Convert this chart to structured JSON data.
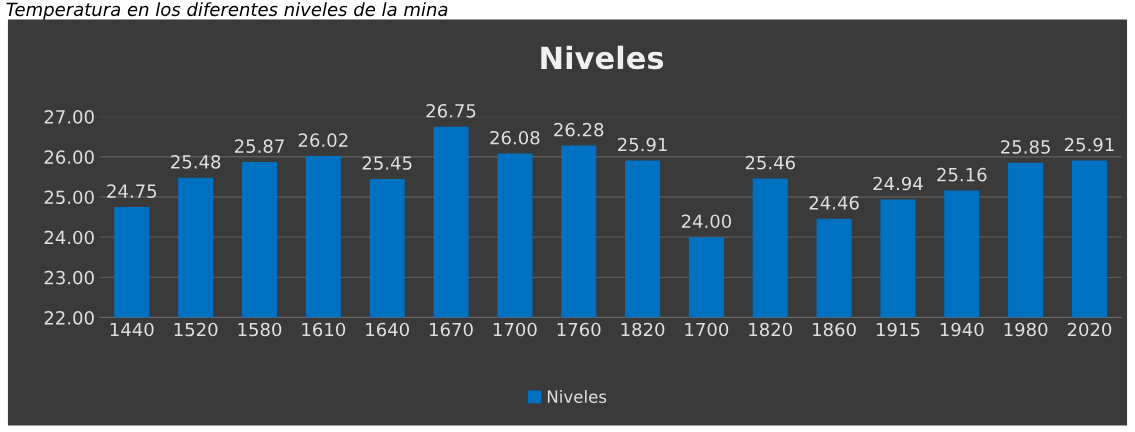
{
  "chart_data": {
    "type": "bar",
    "title": "Niveles",
    "annotations": [
      "Temperatura en los diferentes niveles de la mina"
    ],
    "categories": [
      "1440",
      "1520",
      "1580",
      "1610",
      "1640",
      "1670",
      "1700",
      "1760",
      "1820",
      "1700",
      "1820",
      "1860",
      "1915",
      "1940",
      "1980",
      "2020"
    ],
    "series": [
      {
        "name": "Niveles",
        "color": "#0070c0",
        "values": [
          24.75,
          25.48,
          25.87,
          26.02,
          25.45,
          26.75,
          26.08,
          26.28,
          25.91,
          24.0,
          25.46,
          24.46,
          24.94,
          25.16,
          25.85,
          25.91
        ],
        "value_labels": [
          "24.75",
          "25.48",
          "25.87",
          "26.02",
          "25.45",
          "26.75",
          "26.08",
          "26.28",
          "25.91",
          "24.00",
          "25.46",
          "24.46",
          "24.94",
          "25.16",
          "25.85",
          "25.91"
        ]
      }
    ],
    "ylim": [
      22,
      27
    ],
    "yticks": [
      {
        "value": 22,
        "label": "22.00"
      },
      {
        "value": 23,
        "label": "23.00"
      },
      {
        "value": 24,
        "label": "24.00"
      },
      {
        "value": 25,
        "label": "25.00"
      },
      {
        "value": 26,
        "label": "26.00"
      },
      {
        "value": 27,
        "label": "27.00"
      }
    ],
    "grid": "y",
    "legend": "bottom"
  }
}
